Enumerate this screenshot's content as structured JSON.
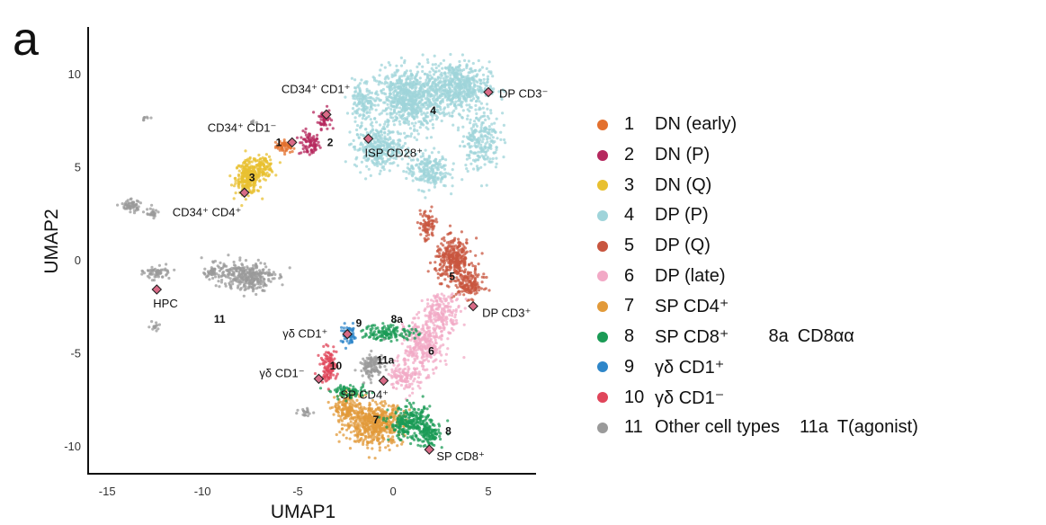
{
  "panel_label": "a",
  "chart_data": {
    "type": "scatter",
    "title": "",
    "xlabel": "UMAP1",
    "ylabel": "UMAP2",
    "xlim": [
      -16,
      7.5
    ],
    "ylim": [
      -11.5,
      12.5
    ],
    "x_ticks": [
      -15,
      -10,
      -5,
      0,
      5
    ],
    "x_tick_labels": [
      "-15",
      "-10",
      "-5",
      "0",
      "5"
    ],
    "y_ticks": [
      -10,
      -5,
      0,
      5,
      10
    ],
    "y_tick_labels": [
      "-10",
      "-5",
      "0",
      "5",
      "10"
    ],
    "clusters": [
      {
        "id": "1",
        "name": "DN (early)",
        "color": "#E3702E",
        "sub": null,
        "sub_name": null,
        "blobs": [
          [
            -5.6,
            6.1,
            0.5,
            0.3,
            60
          ]
        ]
      },
      {
        "id": "2",
        "name": "DN (P)",
        "color": "#B5285E",
        "sub": null,
        "sub_name": null,
        "blobs": [
          [
            -4.4,
            6.2,
            0.5,
            0.6,
            80
          ],
          [
            -3.6,
            7.6,
            0.3,
            0.5,
            60
          ]
        ]
      },
      {
        "id": "3",
        "name": "DN (Q)",
        "color": "#E8C030",
        "sub": null,
        "sub_name": null,
        "blobs": [
          [
            -7.6,
            4.4,
            0.6,
            0.8,
            260
          ],
          [
            -6.8,
            5.0,
            0.5,
            0.5,
            100
          ]
        ]
      },
      {
        "id": "4",
        "name": "DP (P)",
        "color": "#9FD4DA",
        "sub": null,
        "sub_name": null,
        "blobs": [
          [
            0.8,
            8.6,
            1.6,
            1.5,
            750
          ],
          [
            3.4,
            9.3,
            1.5,
            1.2,
            550
          ],
          [
            -0.8,
            6.0,
            1.1,
            1.0,
            320
          ],
          [
            1.8,
            4.8,
            1.0,
            0.9,
            220
          ],
          [
            4.6,
            6.5,
            0.9,
            1.5,
            230
          ],
          [
            -1.6,
            8.4,
            0.5,
            1.1,
            120
          ]
        ]
      },
      {
        "id": "5",
        "name": "DP (Q)",
        "color": "#C8553F",
        "sub": null,
        "sub_name": null,
        "blobs": [
          [
            3.2,
            0.0,
            0.9,
            1.0,
            320
          ],
          [
            4.0,
            -1.4,
            0.7,
            0.6,
            140
          ],
          [
            1.8,
            1.8,
            0.4,
            0.8,
            80
          ]
        ]
      },
      {
        "id": "6",
        "name": "DP (late)",
        "color": "#F2A9C6",
        "sub": null,
        "sub_name": null,
        "blobs": [
          [
            1.6,
            -4.6,
            0.9,
            1.3,
            320
          ],
          [
            2.6,
            -2.8,
            0.9,
            0.9,
            180
          ],
          [
            0.6,
            -6.2,
            0.7,
            0.8,
            120
          ]
        ]
      },
      {
        "id": "7",
        "name": "SP CD4⁺",
        "color": "#E29A3A",
        "sub": null,
        "sub_name": null,
        "blobs": [
          [
            -1.0,
            -8.8,
            1.4,
            1.0,
            550
          ],
          [
            -2.4,
            -8.0,
            0.6,
            0.7,
            140
          ]
        ]
      },
      {
        "id": "8",
        "name": "SP CD8⁺",
        "color": "#1A9B55",
        "sub": "8a",
        "sub_name": "CD8αα",
        "blobs": [
          [
            0.9,
            -8.8,
            1.0,
            0.8,
            260
          ],
          [
            1.9,
            -9.4,
            0.5,
            0.6,
            110
          ],
          [
            -0.2,
            -3.9,
            1.3,
            0.4,
            140
          ],
          [
            -2.3,
            -7.1,
            0.9,
            0.3,
            80
          ]
        ]
      },
      {
        "id": "9",
        "name": "γδ CD1⁺",
        "color": "#2E86C9",
        "sub": null,
        "sub_name": null,
        "blobs": [
          [
            -2.3,
            -4.1,
            0.4,
            0.5,
            60
          ]
        ]
      },
      {
        "id": "10",
        "name": "γδ CD1⁻",
        "color": "#E0455A",
        "sub": null,
        "sub_name": null,
        "blobs": [
          [
            -3.4,
            -5.7,
            0.4,
            0.8,
            110
          ]
        ]
      },
      {
        "id": "11",
        "name": "Other cell types",
        "color": "#9A9A9A",
        "sub": "11a",
        "sub_name": "T(agonist)",
        "blobs": [
          [
            -7.6,
            -0.9,
            1.2,
            0.7,
            300
          ],
          [
            -9.4,
            -0.6,
            0.5,
            0.4,
            60
          ],
          [
            -12.4,
            -0.7,
            0.6,
            0.3,
            60
          ],
          [
            -13.8,
            2.9,
            0.5,
            0.3,
            60
          ],
          [
            -12.6,
            2.5,
            0.3,
            0.3,
            25
          ],
          [
            -1.1,
            -5.7,
            0.6,
            0.6,
            130
          ],
          [
            -4.6,
            -8.2,
            0.3,
            0.2,
            20
          ],
          [
            -12.5,
            -3.6,
            0.3,
            0.2,
            15
          ],
          [
            -13.0,
            7.6,
            0.2,
            0.1,
            8
          ],
          [
            -7.4,
            7.4,
            0.2,
            0.1,
            6
          ]
        ]
      }
    ],
    "reference_points": [
      {
        "label": "CD34⁺ CD1⁺",
        "x": -3.5,
        "y": 7.8
      },
      {
        "label": "CD34⁺ CD1⁻",
        "x": -5.3,
        "y": 6.3
      },
      {
        "label": "CD34⁺ CD4⁺",
        "x": -7.8,
        "y": 3.6
      },
      {
        "label": "ISP CD28⁺",
        "x": -1.3,
        "y": 6.5
      },
      {
        "label": "DP CD3⁻",
        "x": 5.0,
        "y": 9.0
      },
      {
        "label": "DP CD3⁺",
        "x": 4.2,
        "y": -2.5
      },
      {
        "label": "HPC",
        "x": -12.4,
        "y": -1.6
      },
      {
        "label": "γδ CD1⁺",
        "x": -2.4,
        "y": -4.0
      },
      {
        "label": "γδ CD1⁻",
        "x": -3.9,
        "y": -6.4
      },
      {
        "label": "SP CD4⁺",
        "x": -0.5,
        "y": -6.5
      },
      {
        "label": "SP CD8⁺",
        "x": 1.9,
        "y": -10.2
      }
    ],
    "cluster_labels": [
      {
        "text": "1",
        "x": -6.0,
        "y": 6.3
      },
      {
        "text": "2",
        "x": -3.3,
        "y": 6.3
      },
      {
        "text": "3",
        "x": -7.4,
        "y": 4.4
      },
      {
        "text": "4",
        "x": 2.1,
        "y": 8.0
      },
      {
        "text": "5",
        "x": 3.1,
        "y": -0.9
      },
      {
        "text": "6",
        "x": 2.0,
        "y": -4.9
      },
      {
        "text": "7",
        "x": -0.9,
        "y": -8.6
      },
      {
        "text": "8",
        "x": 2.9,
        "y": -9.2
      },
      {
        "text": "8a",
        "x": 0.2,
        "y": -3.2
      },
      {
        "text": "9",
        "x": -1.8,
        "y": -3.4
      },
      {
        "text": "10",
        "x": -3.0,
        "y": -5.7
      },
      {
        "text": "11",
        "x": -9.1,
        "y": -3.2
      },
      {
        "text": "11a",
        "x": -0.4,
        "y": -5.4
      }
    ]
  }
}
